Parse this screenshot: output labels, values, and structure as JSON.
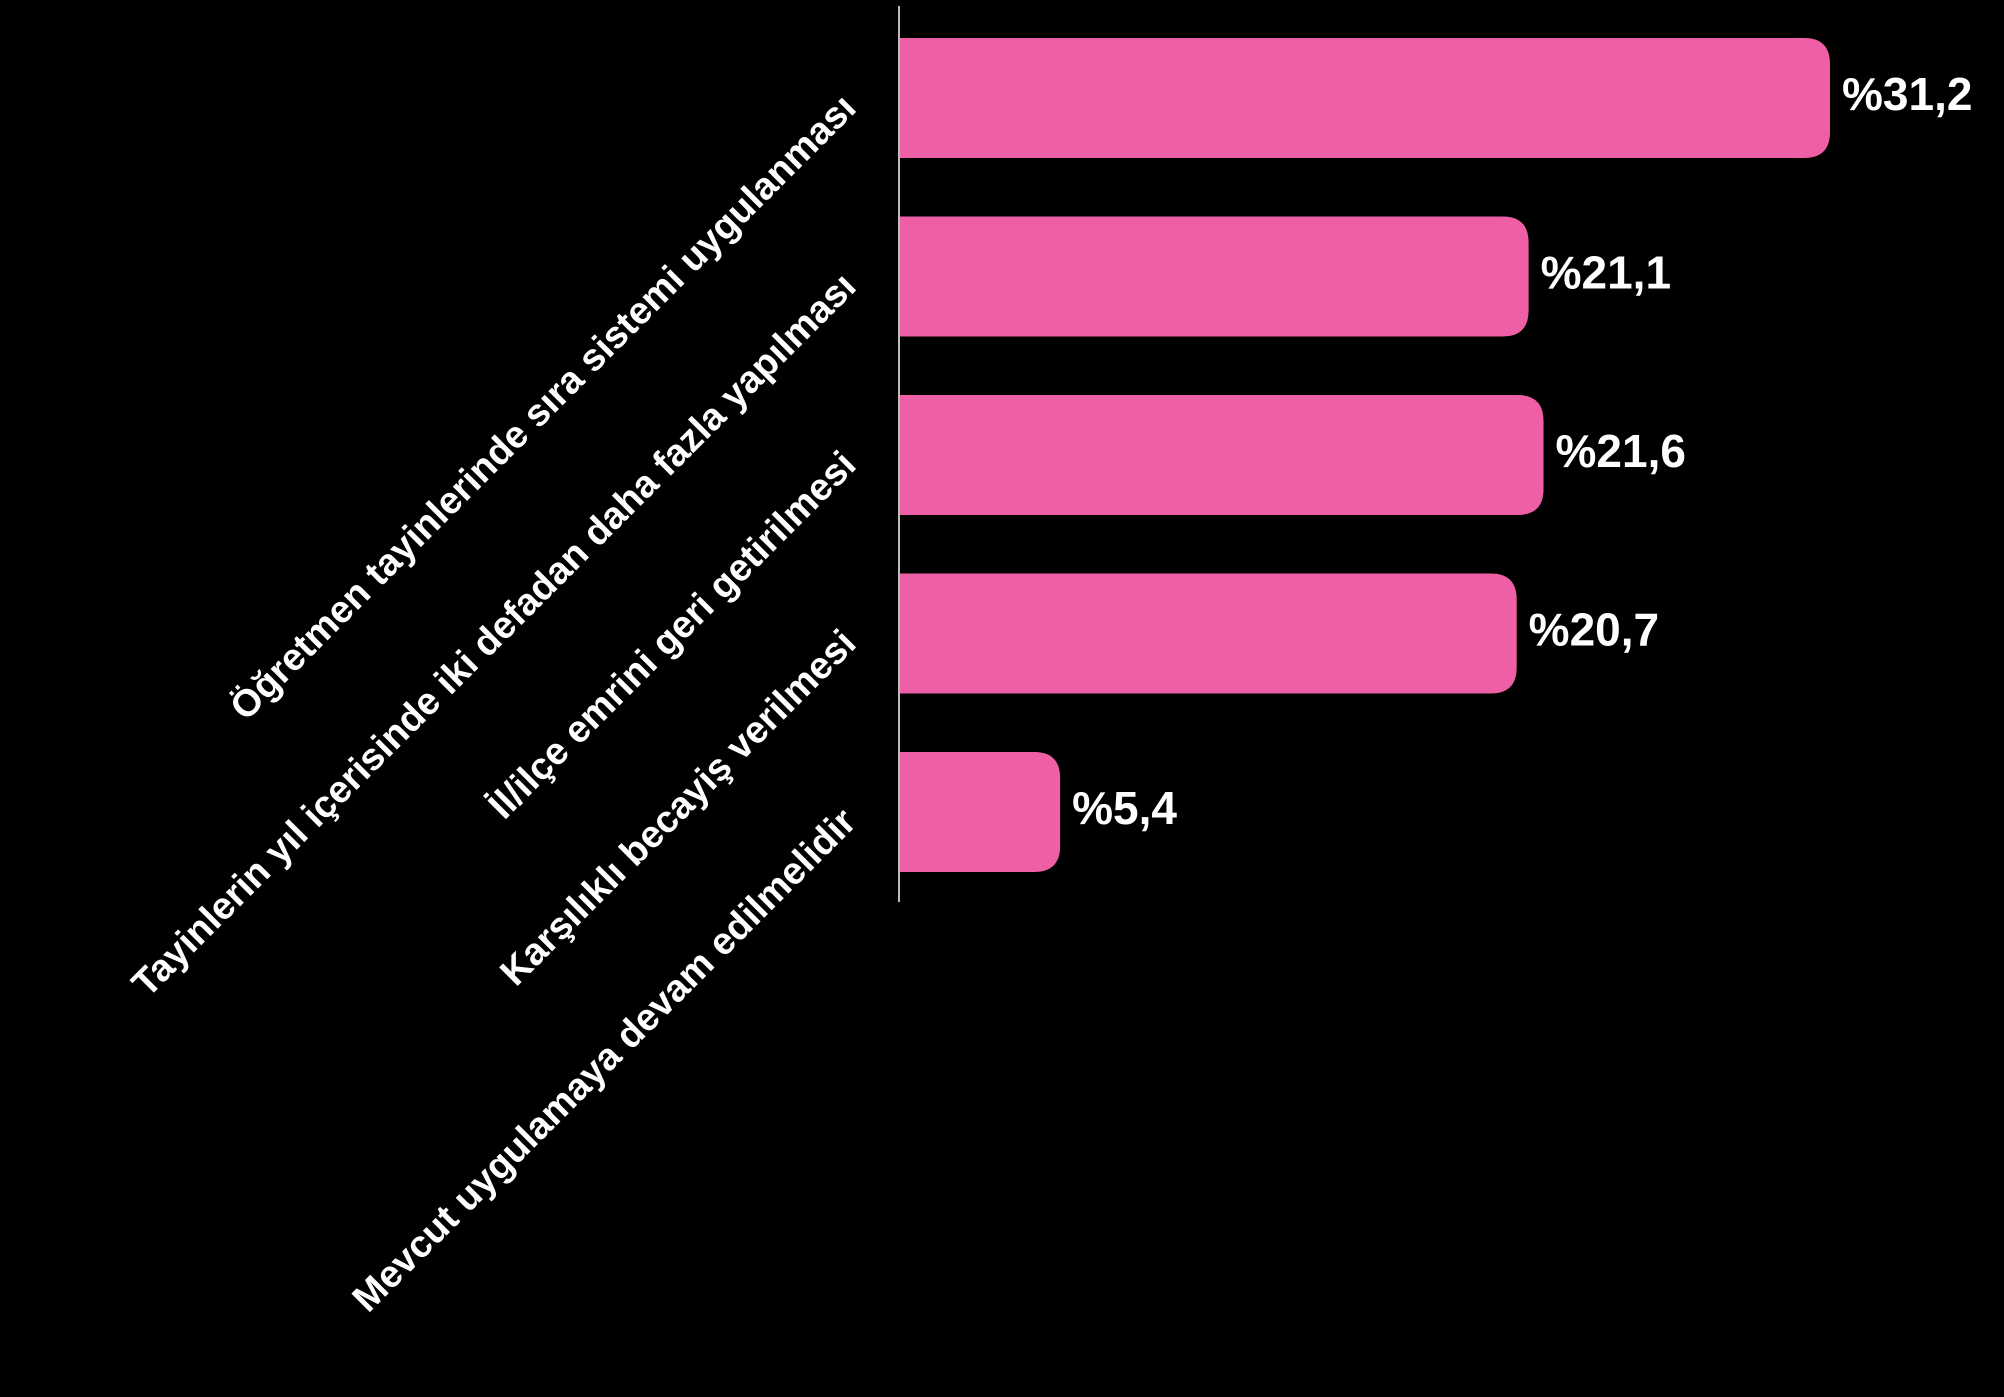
{
  "chart_data": {
    "type": "bar",
    "orientation": "horizontal",
    "categories": [
      "Öğretmen tayinlerinde sıra sistemi uygulanması",
      "Tayinlerin yıl içerisinde iki defadan daha fazla yapılması",
      "İl/ilçe emrini geri getirilmesi",
      "Karşılıklı becayiş verilmesi",
      "Mevcut uygulamaya devam edilmelidir"
    ],
    "values": [
      31.2,
      21.1,
      21.6,
      20.7,
      5.4
    ],
    "data_labels": [
      "%31,2",
      "%21,1",
      "%21,6",
      "%20,7",
      "%5,4"
    ],
    "title": "",
    "xlabel": "",
    "ylabel": "",
    "xlim": [
      0,
      31.2
    ],
    "grid": false,
    "legend": "none",
    "colors": {
      "background": "#000000",
      "bar": "#EE5FA5",
      "axis": "#BBBBBB",
      "text": "#FFFFFF"
    }
  }
}
